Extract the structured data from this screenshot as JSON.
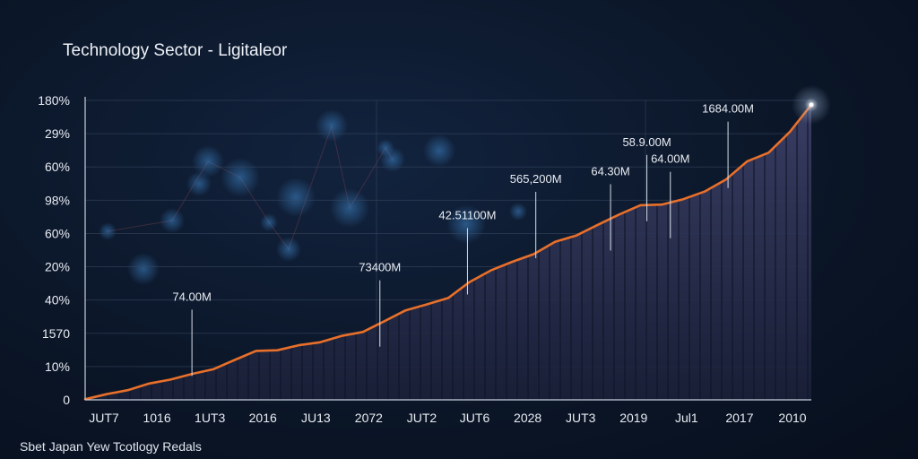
{
  "chart_data": {
    "type": "area",
    "title": "Technology Sector - Ligitaleor",
    "footer": "Sbet Japan Yew Tcotlogy Redals",
    "y_tick_labels": [
      "180%",
      "29%",
      "60%",
      "98%",
      "60%",
      "20%",
      "40%",
      "1570",
      "10%",
      "0"
    ],
    "x_tick_labels": [
      "JUT7",
      "1016",
      "1UT3",
      "2016",
      "JU13",
      "2072",
      "JUT2",
      "JUT6",
      "2028",
      "JUT3",
      "2019",
      "Jul1",
      "2017",
      "2010"
    ],
    "ylim": [
      0,
      9
    ],
    "grid": true,
    "series": [
      {
        "color": "#e8702a",
        "values": [
          0.02,
          0.17,
          0.29,
          0.49,
          0.61,
          0.78,
          0.92,
          1.2,
          1.47,
          1.49,
          1.64,
          1.73,
          1.92,
          2.04,
          2.36,
          2.69,
          2.87,
          3.06,
          3.54,
          3.89,
          4.15,
          4.38,
          4.75,
          4.94,
          5.26,
          5.57,
          5.85,
          5.87,
          6.03,
          6.26,
          6.62,
          7.17,
          7.43,
          8.06,
          8.87
        ]
      }
    ],
    "annotations": [
      {
        "label": "74.00M",
        "x": 5.0,
        "y": 0.61
      },
      {
        "label": "73400M",
        "x": 13.8,
        "y": 1.49
      },
      {
        "label": "42.51100M",
        "x": 17.9,
        "y": 3.06
      },
      {
        "label": "565,200M",
        "x": 21.1,
        "y": 4.15
      },
      {
        "label": "64.30M",
        "x": 24.6,
        "y": 4.38
      },
      {
        "label": "58.9.00M",
        "x": 26.3,
        "y": 5.26
      },
      {
        "label": "64.00M",
        "x": 27.4,
        "y": 4.75
      },
      {
        "label": "1684.00M",
        "x": 30.1,
        "y": 6.26
      }
    ],
    "colors": {
      "line": "#e8702a",
      "area_top": "#3a3f66",
      "area_bottom": "#1a2038",
      "grid": "#3a4a63",
      "axis": "#c8d1de"
    }
  }
}
